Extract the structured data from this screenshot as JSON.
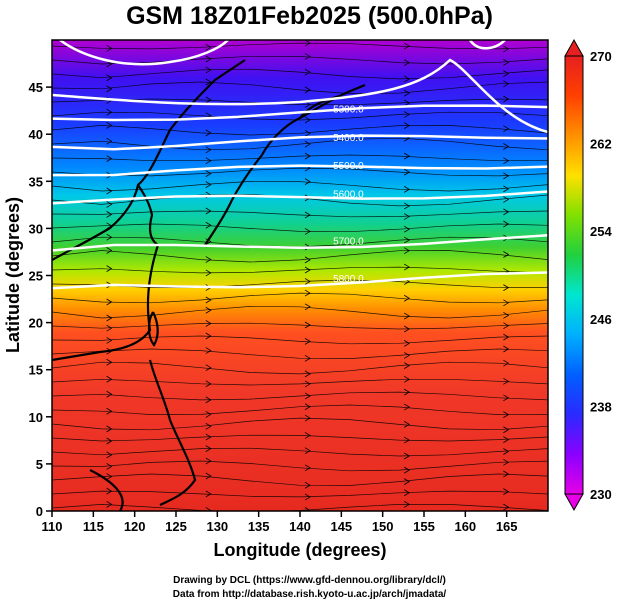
{
  "title": "GSM 18Z01Feb2025 (500.0hPa)",
  "x_axis": {
    "label": "Longitude (degrees)",
    "range": [
      110,
      170
    ],
    "ticks": [
      "110",
      "115",
      "120",
      "125",
      "130",
      "135",
      "140",
      "145",
      "150",
      "155",
      "160",
      "165"
    ]
  },
  "y_axis": {
    "label": "Latitude  (degrees)",
    "range": [
      0,
      50
    ],
    "ticks": [
      "0",
      "5",
      "10",
      "15",
      "20",
      "25",
      "30",
      "35",
      "40",
      "45"
    ]
  },
  "colorbar": {
    "min": 230,
    "max": 270,
    "labels": [
      "230",
      "238",
      "246",
      "254",
      "262",
      "270"
    ],
    "colors": [
      "#e600e6",
      "#8a00ff",
      "#2a2aff",
      "#0060ff",
      "#00b0ff",
      "#00e6d0",
      "#20d040",
      "#80e000",
      "#ffe000",
      "#ff9000",
      "#ff4000",
      "#e62020"
    ]
  },
  "contours": [
    {
      "label": "5300.0",
      "lat": 42.5
    },
    {
      "label": "5400.0",
      "lat": 39.5
    },
    {
      "label": "5500.0",
      "lat": 36.5
    },
    {
      "label": "5600.0",
      "lat": 33.5
    },
    {
      "label": "5700.0",
      "lat": 28.5
    },
    {
      "label": "5800.0",
      "lat": 24.5
    }
  ],
  "credits": {
    "line1": "Drawing by DCL (https://www.gfd-dennou.org/library/dcl/)",
    "line2": "Data from http://database.rish.kyoto-u.ac.jp/arch/jmadata/"
  }
}
